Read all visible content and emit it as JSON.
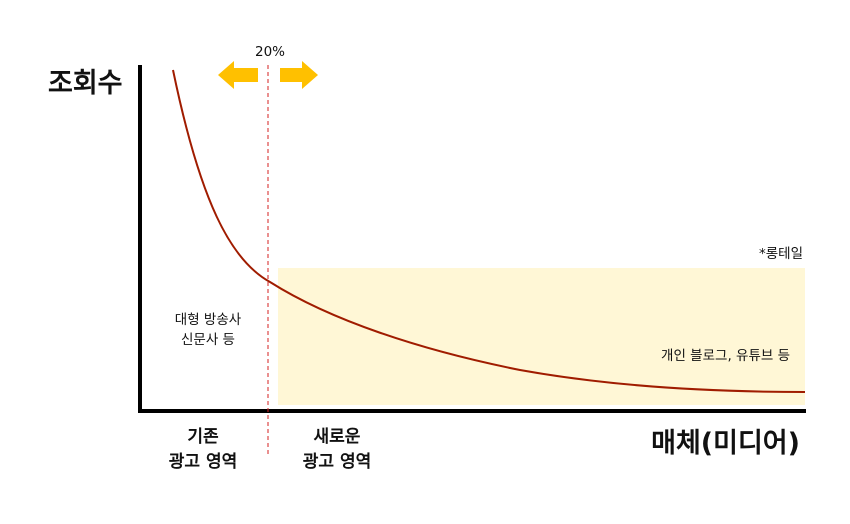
{
  "axes": {
    "y_label": "조회수",
    "x_label": "매체(미디어)"
  },
  "divider": {
    "label": "20%"
  },
  "head": {
    "lines": [
      "대형 방송사",
      "신문사 등"
    ]
  },
  "long_tail": {
    "label": "*롱테일",
    "caption": "개인 블로그, 유튜브 등"
  },
  "areas": [
    {
      "lines": [
        "기존",
        "광고 영역"
      ]
    },
    {
      "lines": [
        "새로운",
        "광고 영역"
      ]
    }
  ]
}
